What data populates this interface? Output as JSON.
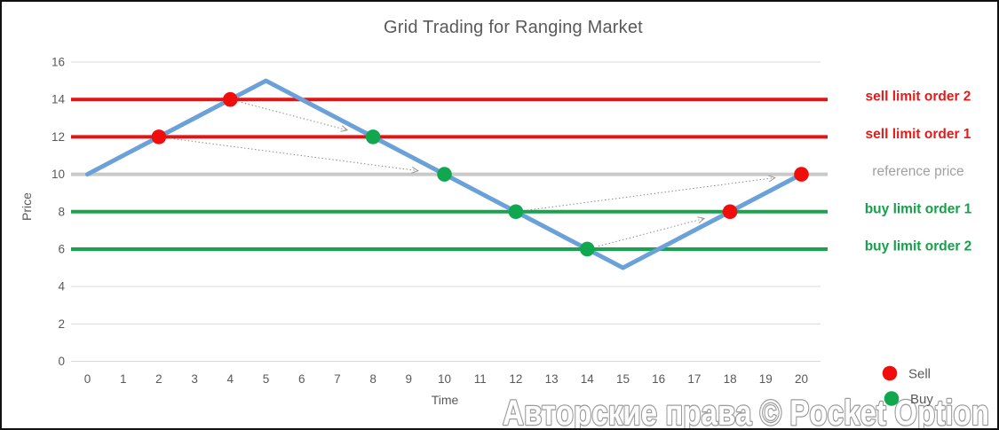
{
  "page": {
    "background": "#ffffff",
    "frame_color": "#111111"
  },
  "chart_data": {
    "type": "line",
    "title": "Grid Trading for Ranging Market",
    "xlabel": "Time",
    "ylabel": "Price",
    "xlim": [
      0,
      20
    ],
    "ylim": [
      0,
      16
    ],
    "grid": true,
    "xticks": [
      0,
      1,
      2,
      3,
      4,
      5,
      6,
      7,
      8,
      9,
      10,
      11,
      12,
      13,
      14,
      15,
      16,
      17,
      18,
      19,
      20
    ],
    "yticks": [
      0,
      2,
      4,
      6,
      8,
      10,
      12,
      14,
      16
    ],
    "colors": {
      "grid": "#D9D9D9",
      "arrow": "#8C8C8C",
      "axis_text": "#595959",
      "title_text": "#595959"
    },
    "series": [
      {
        "name": "price",
        "color": "#6AA1D8",
        "x": [
          0,
          1,
          2,
          3,
          4,
          5,
          6,
          7,
          8,
          9,
          10,
          11,
          12,
          13,
          14,
          15,
          16,
          17,
          18,
          19,
          20
        ],
        "values": [
          10,
          11,
          12,
          13,
          14,
          15,
          14,
          13,
          12,
          11,
          10,
          9,
          8,
          7,
          6,
          5,
          6,
          7,
          8,
          9,
          10
        ]
      }
    ],
    "hlines": [
      {
        "y": 14,
        "label": "sell limit order 2",
        "color": "#E41414",
        "label_color": "#E21B1B",
        "label_weight": "bold"
      },
      {
        "y": 12,
        "label": "sell limit order 1",
        "color": "#E41414",
        "label_color": "#E21B1B",
        "label_weight": "bold"
      },
      {
        "y": 10,
        "label": "reference price",
        "color": "#C9C9C9",
        "label_color": "#A0A0A0",
        "label_weight": "regular"
      },
      {
        "y": 8,
        "label": "buy limit order 1",
        "color": "#18A44C",
        "label_color": "#16A04A",
        "label_weight": "bold"
      },
      {
        "y": 6,
        "label": "buy limit order 2",
        "color": "#18A44C",
        "label_color": "#16A04A",
        "label_weight": "bold"
      }
    ],
    "markers": {
      "sell": {
        "label": "Sell",
        "color": "#F20D0D",
        "points": [
          [
            2,
            12
          ],
          [
            4,
            14
          ],
          [
            18,
            8
          ],
          [
            20,
            10
          ]
        ]
      },
      "buy": {
        "label": "Buy",
        "color": "#10A74F",
        "points": [
          [
            8,
            12
          ],
          [
            10,
            10
          ],
          [
            12,
            8
          ],
          [
            14,
            6
          ]
        ]
      }
    },
    "arrows": [
      {
        "from": [
          4,
          14
        ],
        "to": [
          8,
          12
        ]
      },
      {
        "from": [
          2,
          12
        ],
        "to": [
          10,
          10
        ]
      },
      {
        "from": [
          12,
          8
        ],
        "to": [
          20,
          10
        ]
      },
      {
        "from": [
          14,
          6
        ],
        "to": [
          18,
          8
        ]
      }
    ],
    "legend": {
      "position": "bottom-right",
      "items": [
        {
          "label": "Sell",
          "color": "#F20D0D"
        },
        {
          "label": "Buy",
          "color": "#10A74F"
        }
      ]
    }
  },
  "watermark": {
    "text": "Авторские права © Pocket Option",
    "fill": "#ffffff",
    "outline": "#9B9B9B"
  }
}
